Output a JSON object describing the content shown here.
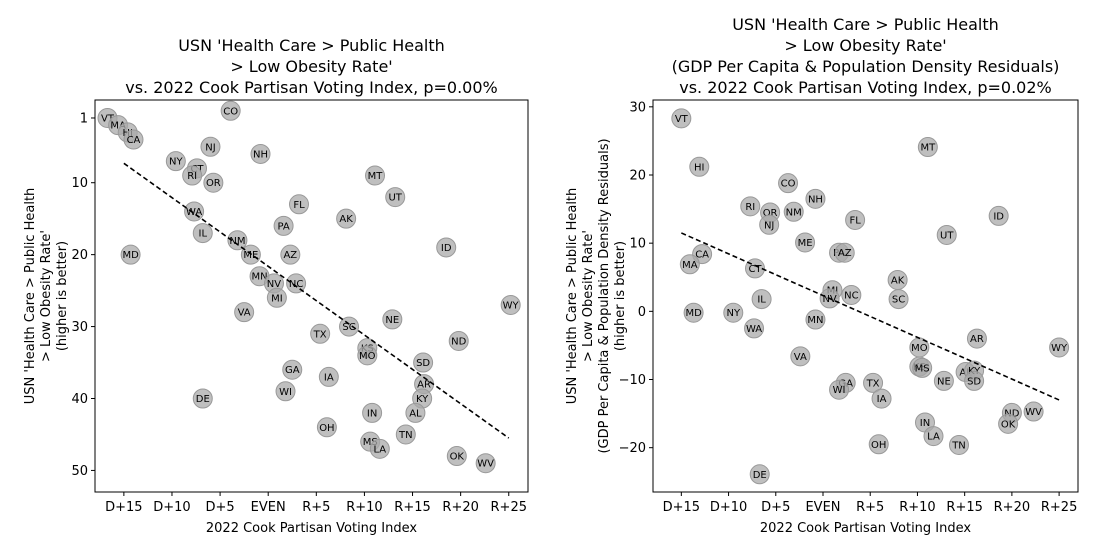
{
  "chart_data": [
    {
      "type": "scatter",
      "title": [
        "USN 'Health Care > Public Health",
        "> Low Obesity Rate'",
        "vs. 2022 Cook Partisan Voting Index, p=0.00%"
      ],
      "xlabel": "2022 Cook Partisan Voting Index",
      "ylabel": [
        "USN 'Health Care > Public Health",
        "> Low Obesity Rate'",
        "(higher is better)"
      ],
      "xlim": [
        -18,
        27
      ],
      "ylim": [
        53,
        -1.5
      ],
      "y_inverted": true,
      "xticks": [
        {
          "v": -15,
          "label": "D+15"
        },
        {
          "v": -10,
          "label": "D+10"
        },
        {
          "v": -5,
          "label": "D+5"
        },
        {
          "v": 0,
          "label": "EVEN"
        },
        {
          "v": 5,
          "label": "R+5"
        },
        {
          "v": 10,
          "label": "R+10"
        },
        {
          "v": 15,
          "label": "R+15"
        },
        {
          "v": 20,
          "label": "R+20"
        },
        {
          "v": 25,
          "label": "R+25"
        }
      ],
      "yticks": [
        {
          "v": 1,
          "label": "1"
        },
        {
          "v": 10,
          "label": "10"
        },
        {
          "v": 20,
          "label": "20"
        },
        {
          "v": 30,
          "label": "30"
        },
        {
          "v": 40,
          "label": "40"
        },
        {
          "v": 50,
          "label": "50"
        }
      ],
      "trend": [
        [
          -15,
          7.3
        ],
        [
          25,
          45.5
        ]
      ],
      "points": [
        {
          "label": "VT",
          "x": -16.7,
          "y": 1
        },
        {
          "label": "MA",
          "x": -15.6,
          "y": 2
        },
        {
          "label": "HI",
          "x": -14.6,
          "y": 3
        },
        {
          "label": "CA",
          "x": -14,
          "y": 4
        },
        {
          "label": "CO",
          "x": -3.9,
          "y": 0
        },
        {
          "label": "NJ",
          "x": -6,
          "y": 5
        },
        {
          "label": "NH",
          "x": -0.8,
          "y": 6
        },
        {
          "label": "NY",
          "x": -9.6,
          "y": 7
        },
        {
          "label": "CT",
          "x": -7.4,
          "y": 8
        },
        {
          "label": "RI",
          "x": -7.9,
          "y": 9
        },
        {
          "label": "OR",
          "x": -5.7,
          "y": 10
        },
        {
          "label": "MT",
          "x": 11.1,
          "y": 9
        },
        {
          "label": "UT",
          "x": 13.2,
          "y": 12
        },
        {
          "label": "FL",
          "x": 3.2,
          "y": 13
        },
        {
          "label": "WA",
          "x": -7.7,
          "y": 14
        },
        {
          "label": "AK",
          "x": 8.1,
          "y": 15
        },
        {
          "label": "PA",
          "x": 1.6,
          "y": 16
        },
        {
          "label": "IL",
          "x": -6.8,
          "y": 17
        },
        {
          "label": "NM",
          "x": -3.2,
          "y": 18
        },
        {
          "label": "ID",
          "x": 18.5,
          "y": 19
        },
        {
          "label": "MD",
          "x": -14.3,
          "y": 20
        },
        {
          "label": "ME",
          "x": -1.8,
          "y": 20
        },
        {
          "label": "AZ",
          "x": 2.3,
          "y": 20
        },
        {
          "label": "MN",
          "x": -0.9,
          "y": 23
        },
        {
          "label": "NV",
          "x": 0.6,
          "y": 24
        },
        {
          "label": "NC",
          "x": 2.9,
          "y": 24
        },
        {
          "label": "MI",
          "x": 0.9,
          "y": 26
        },
        {
          "label": "WY",
          "x": 25.2,
          "y": 27
        },
        {
          "label": "VA",
          "x": -2.5,
          "y": 28
        },
        {
          "label": "NE",
          "x": 12.9,
          "y": 29
        },
        {
          "label": "SC",
          "x": 8.4,
          "y": 30
        },
        {
          "label": "TX",
          "x": 5.4,
          "y": 31
        },
        {
          "label": "ND",
          "x": 19.8,
          "y": 32
        },
        {
          "label": "KS",
          "x": 10.3,
          "y": 33
        },
        {
          "label": "MO",
          "x": 10.3,
          "y": 34
        },
        {
          "label": "SD",
          "x": 16.1,
          "y": 35
        },
        {
          "label": "GA",
          "x": 2.5,
          "y": 36
        },
        {
          "label": "IA",
          "x": 6.3,
          "y": 37
        },
        {
          "label": "AR",
          "x": 16.2,
          "y": 38
        },
        {
          "label": "WI",
          "x": 1.8,
          "y": 39
        },
        {
          "label": "KY",
          "x": 16,
          "y": 40
        },
        {
          "label": "DE",
          "x": -6.8,
          "y": 40
        },
        {
          "label": "AL",
          "x": 15.3,
          "y": 42
        },
        {
          "label": "IN",
          "x": 10.8,
          "y": 42
        },
        {
          "label": "OH",
          "x": 6.1,
          "y": 44
        },
        {
          "label": "TN",
          "x": 14.3,
          "y": 45
        },
        {
          "label": "MS",
          "x": 10.6,
          "y": 46
        },
        {
          "label": "LA",
          "x": 11.6,
          "y": 47
        },
        {
          "label": "OK",
          "x": 19.6,
          "y": 48
        },
        {
          "label": "WV",
          "x": 22.6,
          "y": 49
        }
      ]
    },
    {
      "type": "scatter",
      "title": [
        "USN 'Health Care > Public Health",
        "> Low Obesity Rate'",
        "(GDP Per Capita & Population Density Residuals)",
        "vs. 2022 Cook Partisan Voting Index, p=0.02%"
      ],
      "xlabel": "2022 Cook Partisan Voting Index",
      "ylabel": [
        "USN 'Health Care > Public Health",
        "> Low Obesity Rate'",
        "(GDP Per Capita & Population Density Residuals)",
        "(higher is better)"
      ],
      "xlim": [
        -18,
        27
      ],
      "ylim": [
        -26.5,
        31
      ],
      "y_inverted": false,
      "xticks": [
        {
          "v": -15,
          "label": "D+15"
        },
        {
          "v": -10,
          "label": "D+10"
        },
        {
          "v": -5,
          "label": "D+5"
        },
        {
          "v": 0,
          "label": "EVEN"
        },
        {
          "v": 5,
          "label": "R+5"
        },
        {
          "v": 10,
          "label": "R+10"
        },
        {
          "v": 15,
          "label": "R+15"
        },
        {
          "v": 20,
          "label": "R+20"
        },
        {
          "v": 25,
          "label": "R+25"
        }
      ],
      "yticks": [
        {
          "v": -20,
          "label": "−20"
        },
        {
          "v": -10,
          "label": "−10"
        },
        {
          "v": 0,
          "label": "0"
        },
        {
          "v": 10,
          "label": "10"
        },
        {
          "v": 20,
          "label": "20"
        },
        {
          "v": 30,
          "label": "30"
        }
      ],
      "trend": [
        [
          -15,
          11.5
        ],
        [
          25,
          -13
        ]
      ],
      "points": [
        {
          "label": "VT",
          "x": -15,
          "y": 28.3
        },
        {
          "label": "HI",
          "x": -13.1,
          "y": 21.2
        },
        {
          "label": "MT",
          "x": 11.1,
          "y": 24.1
        },
        {
          "label": "CO",
          "x": -3.7,
          "y": 18.8
        },
        {
          "label": "NH",
          "x": -0.8,
          "y": 16.5
        },
        {
          "label": "RI",
          "x": -7.7,
          "y": 15.4
        },
        {
          "label": "OR",
          "x": -5.6,
          "y": 14.5
        },
        {
          "label": "NM",
          "x": -3.1,
          "y": 14.6
        },
        {
          "label": "FL",
          "x": 3.4,
          "y": 13.4
        },
        {
          "label": "NJ",
          "x": -5.7,
          "y": 12.7
        },
        {
          "label": "ID",
          "x": 18.6,
          "y": 14
        },
        {
          "label": "UT",
          "x": 13.1,
          "y": 11.2
        },
        {
          "label": "ME",
          "x": -1.9,
          "y": 10.1
        },
        {
          "label": "CA",
          "x": -12.8,
          "y": 8.4
        },
        {
          "label": "PA",
          "x": 1.7,
          "y": 8.6
        },
        {
          "label": "AZ",
          "x": 2.3,
          "y": 8.6
        },
        {
          "label": "MA",
          "x": -14.1,
          "y": 6.9
        },
        {
          "label": "CT",
          "x": -7.2,
          "y": 6.3
        },
        {
          "label": "AK",
          "x": 7.9,
          "y": 4.6
        },
        {
          "label": "MI",
          "x": 1,
          "y": 3.1
        },
        {
          "label": "NC",
          "x": 3,
          "y": 2.4
        },
        {
          "label": "NV",
          "x": 0.7,
          "y": 1.9
        },
        {
          "label": "SC",
          "x": 8,
          "y": 1.8
        },
        {
          "label": "IL",
          "x": -6.5,
          "y": 1.8
        },
        {
          "label": "MD",
          "x": -13.7,
          "y": -0.2
        },
        {
          "label": "NY",
          "x": -9.5,
          "y": -0.2
        },
        {
          "label": "MN",
          "x": -0.8,
          "y": -1.2
        },
        {
          "label": "WA",
          "x": -7.3,
          "y": -2.5
        },
        {
          "label": "AR",
          "x": 16.3,
          "y": -4
        },
        {
          "label": "WY",
          "x": 25,
          "y": -5.3
        },
        {
          "label": "MO",
          "x": 10.2,
          "y": -5.3
        },
        {
          "label": "VA",
          "x": -2.4,
          "y": -6.6
        },
        {
          "label": "KS",
          "x": 10.2,
          "y": -8.1
        },
        {
          "label": "MS",
          "x": 10.5,
          "y": -8.3
        },
        {
          "label": "AL",
          "x": 15.1,
          "y": -8.9
        },
        {
          "label": "KY",
          "x": 16,
          "y": -8.7
        },
        {
          "label": "SD",
          "x": 16,
          "y": -10.2
        },
        {
          "label": "NE",
          "x": 12.8,
          "y": -10.2
        },
        {
          "label": "TX",
          "x": 5.3,
          "y": -10.5
        },
        {
          "label": "GA",
          "x": 2.4,
          "y": -10.5
        },
        {
          "label": "WI",
          "x": 1.7,
          "y": -11.5
        },
        {
          "label": "IA",
          "x": 6.2,
          "y": -12.8
        },
        {
          "label": "ND",
          "x": 20,
          "y": -14.9
        },
        {
          "label": "WV",
          "x": 22.3,
          "y": -14.7
        },
        {
          "label": "OK",
          "x": 19.6,
          "y": -16.5
        },
        {
          "label": "IN",
          "x": 10.8,
          "y": -16.3
        },
        {
          "label": "LA",
          "x": 11.7,
          "y": -18.3
        },
        {
          "label": "OH",
          "x": 5.9,
          "y": -19.5
        },
        {
          "label": "TN",
          "x": 14.4,
          "y": -19.6
        },
        {
          "label": "DE",
          "x": -6.7,
          "y": -23.9
        }
      ]
    }
  ],
  "style": {
    "marker_fill": "#aaaaaa",
    "marker_stroke": "#999999",
    "trend_color": "#000000"
  }
}
